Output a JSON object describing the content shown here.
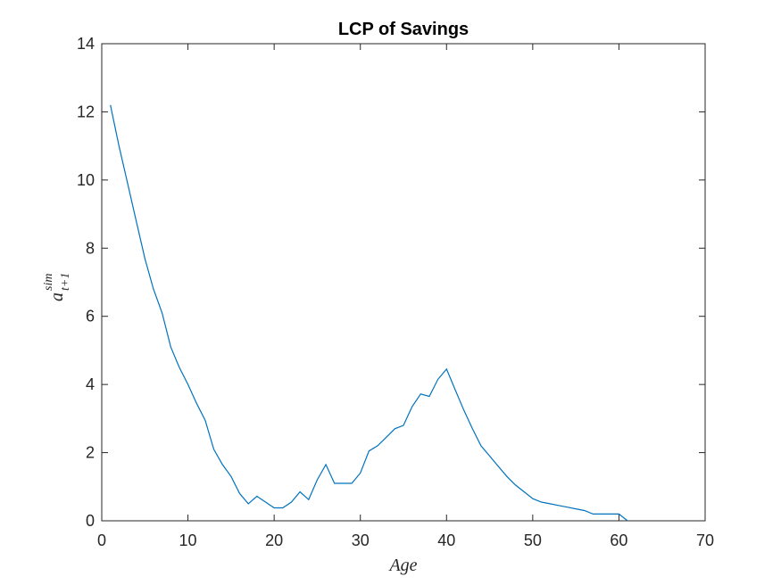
{
  "chart_data": {
    "type": "line",
    "title": "LCP of Savings",
    "xlabel": "Age",
    "ylabel": {
      "base": "a",
      "sup": "sim",
      "sub": "t+1"
    },
    "xlim": [
      0,
      70
    ],
    "ylim": [
      0,
      14
    ],
    "xticks": [
      0,
      10,
      20,
      30,
      40,
      50,
      60,
      70
    ],
    "yticks": [
      0,
      2,
      4,
      6,
      8,
      10,
      12,
      14
    ],
    "grid": false,
    "line_color": "#0072BD",
    "x": [
      1,
      2,
      3,
      4,
      5,
      6,
      7,
      8,
      9,
      10,
      11,
      12,
      13,
      14,
      15,
      16,
      17,
      18,
      19,
      20,
      21,
      22,
      23,
      24,
      25,
      26,
      27,
      28,
      29,
      30,
      31,
      32,
      33,
      34,
      35,
      36,
      37,
      38,
      39,
      40,
      41,
      42,
      43,
      44,
      45,
      46,
      47,
      48,
      49,
      50,
      51,
      52,
      53,
      54,
      55,
      56,
      57,
      58,
      59,
      60,
      61
    ],
    "y": [
      12.2,
      11.0,
      9.9,
      8.8,
      7.7,
      6.8,
      6.1,
      5.1,
      4.5,
      4.0,
      3.45,
      2.95,
      2.1,
      1.65,
      1.3,
      0.8,
      0.5,
      0.72,
      0.55,
      0.38,
      0.38,
      0.55,
      0.85,
      0.62,
      1.2,
      1.65,
      1.1,
      1.1,
      1.1,
      1.4,
      2.05,
      2.2,
      2.45,
      2.7,
      2.8,
      3.35,
      3.72,
      3.65,
      4.15,
      4.45,
      3.85,
      3.25,
      2.7,
      2.2,
      1.9,
      1.6,
      1.3,
      1.05,
      0.85,
      0.65,
      0.55,
      0.5,
      0.45,
      0.4,
      0.35,
      0.3,
      0.2,
      0.2,
      0.2,
      0.2,
      0.0
    ]
  }
}
